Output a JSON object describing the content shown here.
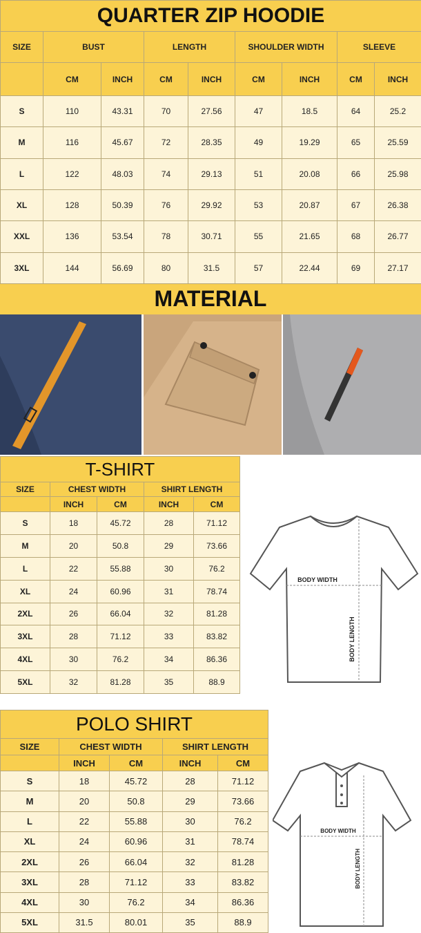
{
  "hoodie": {
    "title": "QUARTER ZIP HOODIE",
    "header": [
      "SIZE",
      "BUST",
      "LENGTH",
      "SHOULDER WIDTH",
      "SLEEVE"
    ],
    "subheader": [
      "CM",
      "INCH",
      "CM",
      "INCH",
      "CM",
      "INCH",
      "CM",
      "INCH"
    ],
    "rows": [
      [
        "S",
        110,
        43.31,
        70,
        27.56,
        47,
        18.5,
        64,
        25.2
      ],
      [
        "M",
        116,
        45.67,
        72,
        28.35,
        49,
        19.29,
        65,
        25.59
      ],
      [
        "L",
        122,
        48.03,
        74,
        29.13,
        51,
        20.08,
        66,
        25.98
      ],
      [
        "XL",
        128,
        50.39,
        76,
        29.92,
        53,
        20.87,
        67,
        26.38
      ],
      [
        "XXL",
        136,
        53.54,
        78,
        30.71,
        55,
        21.65,
        68,
        26.77
      ],
      [
        "3XL",
        144,
        56.69,
        80,
        31.5,
        57,
        22.44,
        69,
        27.17
      ]
    ]
  },
  "material": {
    "title": "MATERIAL"
  },
  "tshirt": {
    "title": "T-SHIRT",
    "header": [
      "SIZE",
      "CHEST WIDTH",
      "SHIRT LENGTH"
    ],
    "subheader": [
      "INCH",
      "CM",
      "INCH",
      "CM"
    ],
    "rows": [
      [
        "S",
        18,
        45.72,
        28,
        71.12
      ],
      [
        "M",
        20,
        50.8,
        29,
        73.66
      ],
      [
        "L",
        22,
        55.88,
        30,
        76.2
      ],
      [
        "XL",
        24,
        60.96,
        31,
        78.74
      ],
      [
        "2XL",
        26,
        66.04,
        32,
        81.28
      ],
      [
        "3XL",
        28,
        71.12,
        33,
        83.82
      ],
      [
        "4XL",
        30,
        76.2,
        34,
        86.36
      ],
      [
        "5XL",
        32,
        81.28,
        35,
        88.9
      ]
    ]
  },
  "tshirt_diagram": {
    "width_label": "BODY WIDTH",
    "length_label": "BODY LENGTH"
  },
  "polo": {
    "title": "POLO SHIRT",
    "header": [
      "SIZE",
      "CHEST WIDTH",
      "SHIRT LENGTH"
    ],
    "subheader": [
      "INCH",
      "CM",
      "INCH",
      "CM"
    ],
    "rows": [
      [
        "S",
        18,
        45.72,
        28,
        71.12
      ],
      [
        "M",
        20,
        50.8,
        29,
        73.66
      ],
      [
        "L",
        22,
        55.88,
        30,
        76.2
      ],
      [
        "XL",
        24,
        60.96,
        31,
        78.74
      ],
      [
        "2XL",
        26,
        66.04,
        32,
        81.28
      ],
      [
        "3XL",
        28,
        71.12,
        33,
        83.82
      ],
      [
        "4XL",
        30,
        76.2,
        34,
        86.36
      ],
      [
        "5XL",
        31.5,
        80.01,
        35,
        88.9
      ]
    ]
  },
  "polo_diagram": {
    "width_label": "BODY WIDTH",
    "length_label": "BODY LENGTH"
  }
}
